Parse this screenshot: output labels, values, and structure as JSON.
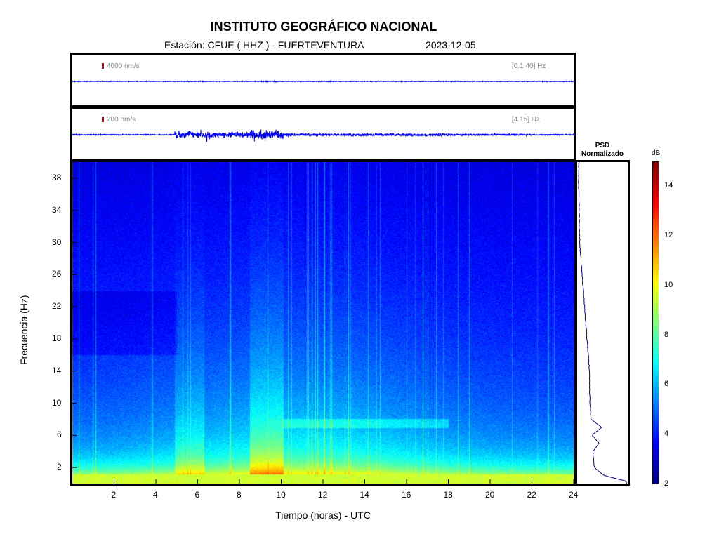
{
  "header": {
    "title": "INSTITUTO GEOGRÁFICO NACIONAL",
    "station": "Estación:  CFUE ( HHZ ) - FUERTEVENTURA",
    "date": "2023-12-05"
  },
  "traces": [
    {
      "scale_label": "4000 nm/s",
      "band_label": "[0.1 40] Hz"
    },
    {
      "scale_label": "200 nm/s",
      "band_label": "[4 15] Hz"
    }
  ],
  "psd": {
    "title_line1": "PSD",
    "title_line2": "Normalizado"
  },
  "colorbar": {
    "unit": "dB",
    "min": 2,
    "max": 15,
    "ticks": [
      2,
      4,
      6,
      8,
      10,
      12,
      14
    ]
  },
  "colors": {
    "trace": "#0000ff",
    "psd_line": "#00008b",
    "scale_marker": "#d00000"
  },
  "chart_data": {
    "type": "heatmap",
    "title": "",
    "xlabel": "Tiempo (horas) - UTC",
    "ylabel": "Frecuencia  (Hz)",
    "xlim": [
      0,
      24
    ],
    "ylim": [
      0,
      40
    ],
    "xticks": [
      2,
      4,
      6,
      8,
      10,
      12,
      14,
      16,
      18,
      20,
      22,
      24
    ],
    "yticks": [
      2,
      6,
      10,
      14,
      18,
      22,
      26,
      30,
      34,
      38
    ],
    "colormap": "jet",
    "clim": [
      2,
      15
    ],
    "energy_bursts_hours": [
      [
        4.9,
        6.3
      ],
      [
        8.5,
        10.1
      ]
    ],
    "psd_profile": [
      {
        "f": 0.3,
        "v": 1.0
      },
      {
        "f": 1,
        "v": 0.55
      },
      {
        "f": 2,
        "v": 0.35
      },
      {
        "f": 4,
        "v": 0.32
      },
      {
        "f": 5,
        "v": 0.45
      },
      {
        "f": 6,
        "v": 0.3
      },
      {
        "f": 7,
        "v": 0.5
      },
      {
        "f": 8,
        "v": 0.28
      },
      {
        "f": 10,
        "v": 0.26
      },
      {
        "f": 14,
        "v": 0.25
      },
      {
        "f": 18,
        "v": 0.2
      },
      {
        "f": 22,
        "v": 0.15
      },
      {
        "f": 26,
        "v": 0.1
      },
      {
        "f": 30,
        "v": 0.05
      },
      {
        "f": 34,
        "v": 0.04
      },
      {
        "f": 38,
        "v": 0.03
      }
    ]
  }
}
